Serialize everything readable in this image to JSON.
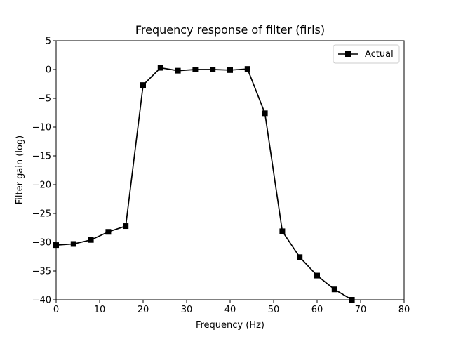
{
  "chart_data": {
    "type": "line",
    "title": "Frequency response of filter (firls)",
    "xlabel": "Frequency (Hz)",
    "ylabel": "Filter gain (log)",
    "xlim": [
      0,
      80
    ],
    "ylim": [
      -40,
      5
    ],
    "xticks": [
      0,
      10,
      20,
      30,
      40,
      50,
      60,
      70,
      80
    ],
    "yticks": [
      5,
      0,
      -5,
      -10,
      -15,
      -20,
      -25,
      -30,
      -35,
      -40
    ],
    "grid": false,
    "legend_position": "top-right",
    "series": [
      {
        "name": "Actual",
        "color": "#000000",
        "marker": "square",
        "x": [
          0,
          4,
          8,
          12,
          16,
          20,
          24,
          28,
          32,
          36,
          40,
          44,
          48,
          52,
          56,
          60,
          64,
          68
        ],
        "y": [
          -30.5,
          -30.3,
          -29.6,
          -28.2,
          -27.2,
          -2.7,
          0.3,
          -0.2,
          0.0,
          0.0,
          -0.1,
          0.1,
          -7.6,
          -28.1,
          -32.6,
          -35.8,
          -38.2,
          -40.0
        ]
      }
    ]
  }
}
